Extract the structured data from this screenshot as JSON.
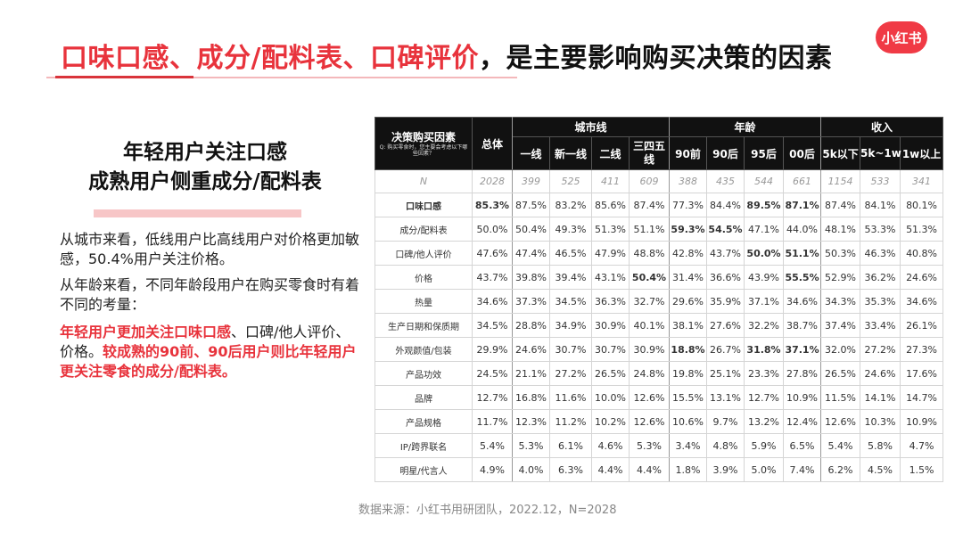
{
  "title": {
    "highlight": "口味口感、成分/配料表、口碑评价",
    "rest": "，是主要影响购买决策的因素"
  },
  "logo": "小红书",
  "left": {
    "heading_line1": "年轻用户关注口感",
    "heading_line2": "成熟用户侧重成分/配料表",
    "para1": "从城市来看，低线用户比高线用户对价格更加敏感，50.4%用户关注价格。",
    "para2": "从年龄来看，不同年龄段用户在购买零食时有着不同的考量：",
    "para3_red1": "年轻用户更加关注口味口感",
    "para3_plain": "、口碑/他人评价、价格。",
    "para3_red2": "较成熟的90前、90后用户则比年轻用户更关注零食的成分/配料表。"
  },
  "source": "数据来源：小红书用研团队，2022.12，N=2028",
  "table": {
    "corner_title": "决策购买因素",
    "corner_question": "Q: 购买零食时，您主要会考虑以下哪些因素？",
    "total_label": "总体",
    "groups": {
      "city": "城市线",
      "age": "年龄",
      "income": "收入"
    },
    "columns": [
      "一线",
      "新一线",
      "二线",
      "三四五线",
      "90前",
      "90后",
      "95后",
      "00后",
      "5k以下",
      "5k~1w",
      "1w以上"
    ],
    "n_label": "N",
    "n_values": [
      "2028",
      "399",
      "525",
      "411",
      "609",
      "388",
      "435",
      "544",
      "661",
      "1154",
      "533",
      "341"
    ],
    "rows": [
      {
        "label": "口味口感",
        "values": [
          "85.3%",
          "87.5%",
          "83.2%",
          "85.6%",
          "87.4%",
          "77.3%",
          "84.4%",
          "89.5%",
          "87.1%",
          "87.4%",
          "84.1%",
          "80.1%"
        ]
      },
      {
        "label": "成分/配料表",
        "values": [
          "50.0%",
          "50.4%",
          "49.3%",
          "51.3%",
          "51.1%",
          "59.3%",
          "54.5%",
          "47.1%",
          "44.0%",
          "48.1%",
          "53.3%",
          "51.3%"
        ]
      },
      {
        "label": "口碑/他人评价",
        "values": [
          "47.6%",
          "47.4%",
          "46.5%",
          "47.9%",
          "48.8%",
          "42.8%",
          "43.7%",
          "50.0%",
          "51.1%",
          "50.3%",
          "46.3%",
          "40.8%"
        ]
      },
      {
        "label": "价格",
        "values": [
          "43.7%",
          "39.8%",
          "39.4%",
          "43.1%",
          "50.4%",
          "31.4%",
          "36.6%",
          "43.9%",
          "55.5%",
          "52.9%",
          "36.2%",
          "24.6%"
        ]
      },
      {
        "label": "热量",
        "values": [
          "34.6%",
          "37.3%",
          "34.5%",
          "36.3%",
          "32.7%",
          "29.6%",
          "35.9%",
          "37.1%",
          "34.6%",
          "34.3%",
          "35.3%",
          "34.6%"
        ]
      },
      {
        "label": "生产日期和保质期",
        "values": [
          "34.5%",
          "28.8%",
          "34.9%",
          "30.9%",
          "40.1%",
          "38.1%",
          "27.6%",
          "32.2%",
          "38.7%",
          "37.4%",
          "33.4%",
          "26.1%"
        ]
      },
      {
        "label": "外观颜值/包装",
        "values": [
          "29.9%",
          "24.6%",
          "30.7%",
          "30.7%",
          "30.9%",
          "18.8%",
          "26.7%",
          "31.8%",
          "37.1%",
          "32.0%",
          "27.2%",
          "27.3%"
        ]
      },
      {
        "label": "产品功效",
        "values": [
          "24.5%",
          "21.1%",
          "27.2%",
          "26.5%",
          "24.8%",
          "19.8%",
          "25.1%",
          "23.3%",
          "27.8%",
          "26.5%",
          "24.6%",
          "17.6%"
        ]
      },
      {
        "label": "品牌",
        "values": [
          "12.7%",
          "16.8%",
          "11.6%",
          "10.0%",
          "12.6%",
          "15.5%",
          "13.1%",
          "12.7%",
          "10.9%",
          "11.5%",
          "14.1%",
          "14.7%"
        ]
      },
      {
        "label": "产品规格",
        "values": [
          "11.7%",
          "12.3%",
          "11.2%",
          "10.2%",
          "12.6%",
          "10.6%",
          "9.7%",
          "13.2%",
          "12.4%",
          "12.6%",
          "10.3%",
          "10.9%"
        ]
      },
      {
        "label": "IP/跨界联名",
        "values": [
          "5.4%",
          "5.3%",
          "6.1%",
          "4.6%",
          "5.3%",
          "3.4%",
          "4.8%",
          "5.9%",
          "6.5%",
          "5.4%",
          "5.8%",
          "4.7%"
        ]
      },
      {
        "label": "明星/代言人",
        "values": [
          "4.9%",
          "4.0%",
          "6.3%",
          "4.4%",
          "4.4%",
          "1.8%",
          "3.9%",
          "5.0%",
          "7.4%",
          "6.2%",
          "4.5%",
          "1.5%"
        ]
      }
    ],
    "highlight_color": "#e8333c"
  }
}
